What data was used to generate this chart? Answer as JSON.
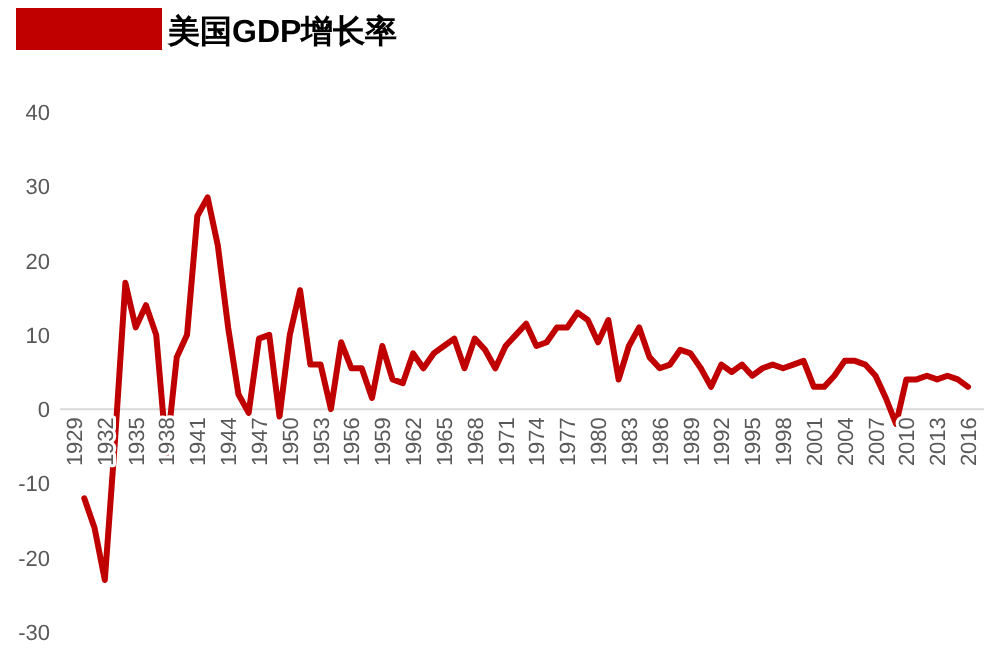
{
  "chart_data": {
    "type": "line",
    "categories": [
      "1929",
      null,
      null,
      "1932",
      null,
      null,
      "1935",
      null,
      null,
      "1938",
      null,
      null,
      "1941",
      null,
      null,
      "1944",
      null,
      null,
      "1947",
      null,
      null,
      "1950",
      null,
      null,
      "1953",
      null,
      null,
      "1956",
      null,
      null,
      "1959",
      null,
      null,
      "1962",
      null,
      null,
      "1965",
      null,
      null,
      "1968",
      null,
      null,
      "1971",
      null,
      null,
      "1974",
      null,
      null,
      "1977",
      null,
      null,
      "1980",
      null,
      null,
      "1983",
      null,
      null,
      "1986",
      null,
      null,
      "1989",
      null,
      null,
      "1992",
      null,
      null,
      "1995",
      null,
      null,
      "1998",
      null,
      null,
      "2001",
      null,
      null,
      "2004",
      null,
      null,
      "2007",
      null,
      null,
      "2010",
      null,
      null,
      "2013",
      null,
      null,
      "2016"
    ],
    "series": [
      {
        "name": "美国GDP增长率",
        "color": "#c00000",
        "values": [
          null,
          -12,
          -16,
          -23,
          -4,
          17,
          11,
          14,
          10,
          -6,
          7,
          10,
          26,
          28.5,
          22,
          11,
          2,
          -0.5,
          9.5,
          10,
          -1,
          10,
          16,
          6,
          6,
          0,
          9,
          5.5,
          5.5,
          1.5,
          8.5,
          4,
          3.5,
          7.5,
          5.5,
          7.5,
          8.5,
          9.5,
          5.5,
          9.5,
          8,
          5.5,
          8.5,
          10,
          11.5,
          8.5,
          9,
          11,
          11,
          13,
          12,
          9,
          12,
          4,
          8.5,
          11,
          7,
          5.5,
          6,
          8,
          7.5,
          5.5,
          3,
          6,
          5,
          6,
          4.5,
          5.5,
          6,
          5.5,
          6,
          6.5,
          3,
          3,
          4.5,
          6.5,
          6.5,
          6,
          4.5,
          1.5,
          -2,
          4,
          4,
          4.5,
          4,
          4.5,
          4,
          3
        ]
      }
    ],
    "ylim": [
      -30,
      40
    ],
    "yticks": [
      -30,
      -20,
      -10,
      0,
      10,
      20,
      30,
      40
    ],
    "legend": "top left"
  }
}
